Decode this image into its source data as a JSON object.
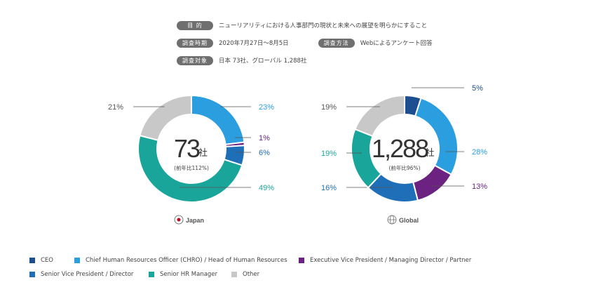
{
  "info": {
    "rows": [
      [
        {
          "label": "目 的",
          "value": "ニューリアリティにおける人事部門の現状と未来への展望を明らかにすること"
        }
      ],
      [
        {
          "label": "調査時期",
          "value": "2020年7月27日〜8月5日"
        },
        {
          "label": "調査方法",
          "value": "Webによるアンケート回答"
        }
      ],
      [
        {
          "label": "調査対象",
          "value": "日本 73社、グローバル 1,288社"
        }
      ]
    ]
  },
  "colors": {
    "ceo": "#1d4e8f",
    "chro": "#2b9ee0",
    "evp": "#6b2281",
    "svp": "#1f6fb8",
    "hr": "#1aa59a",
    "other": "#c8c8c8"
  },
  "chart_data": [
    {
      "type": "pie",
      "center_value": "73",
      "center_unit": "社",
      "center_note": "(前年比112%)",
      "caption": "Japan",
      "slices": [
        {
          "name": "Chief Human Resources Officer (CHRO) / Head of Human Resources",
          "value": 23,
          "label": "23%",
          "color": "#2b9ee0"
        },
        {
          "name": "Executive Vice President / Managing Director / Partner",
          "value": 1,
          "label": "1%",
          "color": "#6b2281"
        },
        {
          "name": "Senior Vice President / Director",
          "value": 6,
          "label": "6%",
          "color": "#1f6fb8"
        },
        {
          "name": "Senior HR Manager",
          "value": 49,
          "label": "49%",
          "color": "#1aa59a"
        },
        {
          "name": "Other",
          "value": 21,
          "label": "21%",
          "color": "#c8c8c8"
        }
      ]
    },
    {
      "type": "pie",
      "center_value": "1,288",
      "center_unit": "社",
      "center_note": "(前年比96%)",
      "caption": "Global",
      "slices": [
        {
          "name": "CEO",
          "value": 5,
          "label": "5%",
          "color": "#1d4e8f"
        },
        {
          "name": "Chief Human Resources Officer (CHRO) / Head of Human Resources",
          "value": 28,
          "label": "28%",
          "color": "#2b9ee0"
        },
        {
          "name": "Executive Vice President / Managing Director / Partner",
          "value": 13,
          "label": "13%",
          "color": "#6b2281"
        },
        {
          "name": "Senior Vice President / Director",
          "value": 16,
          "label": "16%",
          "color": "#1f6fb8"
        },
        {
          "name": "Senior HR Manager",
          "value": 19,
          "label": "19%",
          "color": "#1aa59a"
        },
        {
          "name": "Other",
          "value": 19,
          "label": "19%",
          "color": "#c8c8c8"
        }
      ]
    }
  ],
  "legend": {
    "rows": [
      [
        {
          "label": "CEO",
          "color": "#1d4e8f"
        },
        {
          "label": "Chief Human Resources Officer (CHRO) / Head of Human Resources",
          "color": "#2b9ee0"
        },
        {
          "label": "Executive Vice President / Managing Director / Partner",
          "color": "#6b2281"
        }
      ],
      [
        {
          "label": "Senior Vice President / Director",
          "color": "#1f6fb8"
        },
        {
          "label": "Senior HR Manager",
          "color": "#1aa59a"
        },
        {
          "label": "Other",
          "color": "#c8c8c8"
        }
      ]
    ]
  }
}
